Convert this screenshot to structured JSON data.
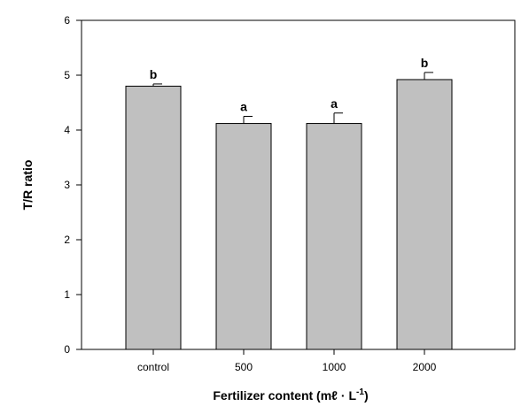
{
  "chart_data": {
    "type": "bar",
    "categories": [
      "control",
      "500",
      "1000",
      "2000"
    ],
    "values": [
      4.8,
      4.12,
      4.12,
      4.92
    ],
    "errors": [
      0.04,
      0.13,
      0.19,
      0.13
    ],
    "significance": [
      "b",
      "a",
      "a",
      "b"
    ],
    "xlabel_main": "Fertilizer content (",
    "xlabel_unit": "mℓ · L",
    "xlabel_exp": "-1",
    "xlabel_close": ")",
    "ylabel": "T/R ratio",
    "ylim": [
      0,
      6
    ],
    "yticks": [
      "0",
      "1",
      "2",
      "3",
      "4",
      "5",
      "6"
    ],
    "grid": false,
    "colors": {
      "bar_fill": "#c0c0c0",
      "bar_stroke": "#000000",
      "axis": "#000000"
    }
  }
}
